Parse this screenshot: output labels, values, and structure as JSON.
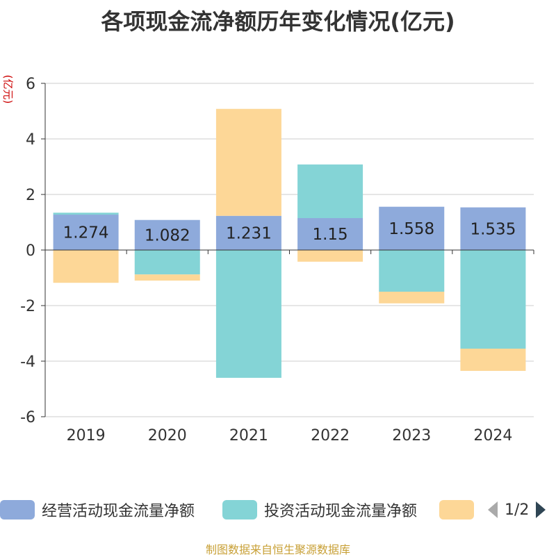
{
  "chart_data": {
    "type": "bar",
    "stacked": true,
    "title": "各项现金流净额历年变化情况(亿元)",
    "ylabel": "(亿元)",
    "ylim": [
      -6,
      6
    ],
    "yticks": [
      6,
      4,
      2,
      0,
      -2,
      -4,
      -6
    ],
    "categories": [
      "2019",
      "2020",
      "2021",
      "2022",
      "2023",
      "2024"
    ],
    "series": [
      {
        "name": "经营活动现金流量净额",
        "color": "#8eaadb",
        "values": [
          1.274,
          1.082,
          1.231,
          1.15,
          1.558,
          1.535
        ],
        "labels": [
          "1.274",
          "1.082",
          "1.231",
          "1.15",
          "1.558",
          "1.535"
        ]
      },
      {
        "name": "投资活动现金流量净额",
        "color": "#84d4d6",
        "values": [
          0.07,
          -0.88,
          -4.6,
          1.93,
          -1.5,
          -3.55
        ]
      },
      {
        "name": "",
        "color": "#fdd797",
        "values": [
          -1.18,
          -0.22,
          3.85,
          -0.42,
          -0.42,
          -0.8
        ]
      }
    ]
  },
  "legend": {
    "item1": "经营活动现金流量净额",
    "item2": "投资活动现金流量净额",
    "page": "1/2"
  },
  "source": "制图数据来自恒生聚源数据库"
}
